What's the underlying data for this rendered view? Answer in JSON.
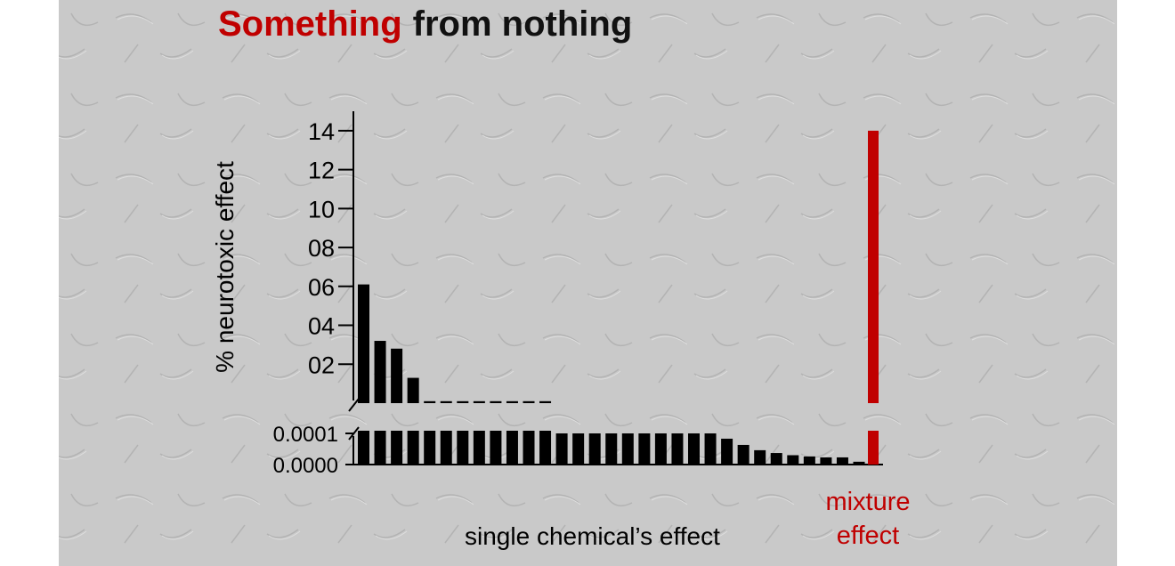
{
  "chart_data": {
    "type": "bar",
    "title_parts": [
      "Something",
      "from nothing"
    ],
    "title_colors": [
      "#c00000",
      "#111111"
    ],
    "ylabel": "% neurotoxic effect",
    "ylim": [
      0,
      15
    ],
    "yticks": [
      {
        "value": 2,
        "label": "02"
      },
      {
        "value": 4,
        "label": "04"
      },
      {
        "value": 6,
        "label": "06"
      },
      {
        "value": 8,
        "label": "08"
      },
      10,
      12,
      14
    ],
    "lower_ylim": [
      0,
      0.0001
    ],
    "lower_yticks": [
      {
        "value": 0,
        "label": "0.0000"
      },
      {
        "value": 0.0001,
        "label": "0.0001"
      }
    ],
    "series": [
      {
        "name": "single chemical’s effect",
        "color": "#000000",
        "values": [
          6.1,
          3.2,
          2.8,
          1.3,
          0.1,
          0.1,
          0.1,
          0.1,
          0.1,
          0.1,
          0.1,
          0.1,
          0.0001,
          0.0001,
          0.0001,
          0.0001,
          0.0001,
          0.0001,
          0.0001,
          0.0001,
          0.0001,
          0.0001,
          8.3e-05,
          6.3e-05,
          4.6e-05,
          3.7e-05,
          3e-05,
          2.6e-05,
          2.3e-05,
          2.3e-05,
          9e-06
        ]
      },
      {
        "name": "mixture effect",
        "color": "#c00000",
        "values": [
          14
        ]
      }
    ]
  }
}
